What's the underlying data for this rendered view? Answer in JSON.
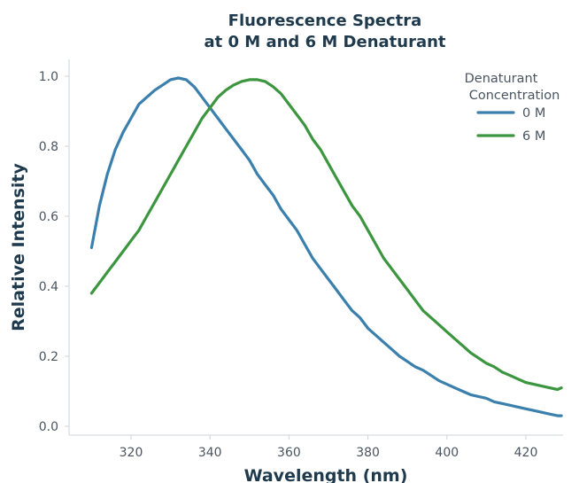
{
  "chart_data": {
    "type": "line",
    "title": [
      "Fluorescence Spectra",
      "at 0 M and 6 M Denaturant"
    ],
    "xlabel": "Wavelength (nm)",
    "ylabel": "Relative Intensity",
    "xlim": [
      305,
      432
    ],
    "ylim": [
      -0.02,
      1.04
    ],
    "xticks": [
      320,
      340,
      360,
      380,
      400,
      420
    ],
    "yticks": [
      0.0,
      0.2,
      0.4,
      0.6,
      0.8,
      1.0
    ],
    "xtick_labels": [
      "320",
      "340",
      "360",
      "380",
      "400",
      "420"
    ],
    "ytick_labels": [
      "0.0",
      "0.2",
      "0.4",
      "0.6",
      "0.8",
      "1.0"
    ],
    "grid": false,
    "legend": {
      "title": [
        "Denaturant",
        "Concentration"
      ],
      "placement": "top-right"
    },
    "series": [
      {
        "name": "0 M",
        "color": "#3b80ad",
        "x": [
          310,
          312,
          314,
          316,
          318,
          320,
          322,
          324,
          326,
          328,
          330,
          332,
          334,
          336,
          338,
          340,
          342,
          344,
          346,
          348,
          350,
          352,
          354,
          356,
          358,
          360,
          362,
          364,
          366,
          368,
          370,
          372,
          374,
          376,
          378,
          380,
          382,
          384,
          386,
          388,
          390,
          392,
          394,
          396,
          398,
          400,
          402,
          404,
          406,
          408,
          410,
          412,
          414,
          416,
          418,
          420,
          422,
          424,
          426,
          428,
          429
        ],
        "values": [
          0.51,
          0.63,
          0.72,
          0.79,
          0.84,
          0.88,
          0.92,
          0.94,
          0.96,
          0.975,
          0.99,
          0.995,
          0.99,
          0.97,
          0.94,
          0.91,
          0.88,
          0.85,
          0.82,
          0.79,
          0.76,
          0.72,
          0.69,
          0.66,
          0.62,
          0.59,
          0.56,
          0.52,
          0.48,
          0.45,
          0.42,
          0.39,
          0.36,
          0.33,
          0.31,
          0.28,
          0.26,
          0.24,
          0.22,
          0.2,
          0.185,
          0.17,
          0.16,
          0.145,
          0.13,
          0.12,
          0.11,
          0.1,
          0.09,
          0.085,
          0.08,
          0.07,
          0.065,
          0.06,
          0.055,
          0.05,
          0.045,
          0.04,
          0.035,
          0.03,
          0.03
        ]
      },
      {
        "name": "6 M",
        "color": "#3c963f",
        "x": [
          310,
          312,
          314,
          316,
          318,
          320,
          322,
          324,
          326,
          328,
          330,
          332,
          334,
          336,
          338,
          340,
          342,
          344,
          346,
          348,
          350,
          352,
          354,
          356,
          358,
          360,
          362,
          364,
          366,
          368,
          370,
          372,
          374,
          376,
          378,
          380,
          382,
          384,
          386,
          388,
          390,
          392,
          394,
          396,
          398,
          400,
          402,
          404,
          406,
          408,
          410,
          412,
          414,
          416,
          418,
          420,
          422,
          424,
          426,
          428,
          429
        ],
        "values": [
          0.38,
          0.41,
          0.44,
          0.47,
          0.5,
          0.53,
          0.56,
          0.6,
          0.64,
          0.68,
          0.72,
          0.76,
          0.8,
          0.84,
          0.88,
          0.91,
          0.94,
          0.96,
          0.975,
          0.985,
          0.99,
          0.99,
          0.985,
          0.97,
          0.95,
          0.92,
          0.89,
          0.86,
          0.82,
          0.79,
          0.75,
          0.71,
          0.67,
          0.63,
          0.6,
          0.56,
          0.52,
          0.48,
          0.45,
          0.42,
          0.39,
          0.36,
          0.33,
          0.31,
          0.29,
          0.27,
          0.25,
          0.23,
          0.21,
          0.195,
          0.18,
          0.17,
          0.155,
          0.145,
          0.135,
          0.125,
          0.12,
          0.115,
          0.11,
          0.105,
          0.11
        ]
      }
    ]
  }
}
